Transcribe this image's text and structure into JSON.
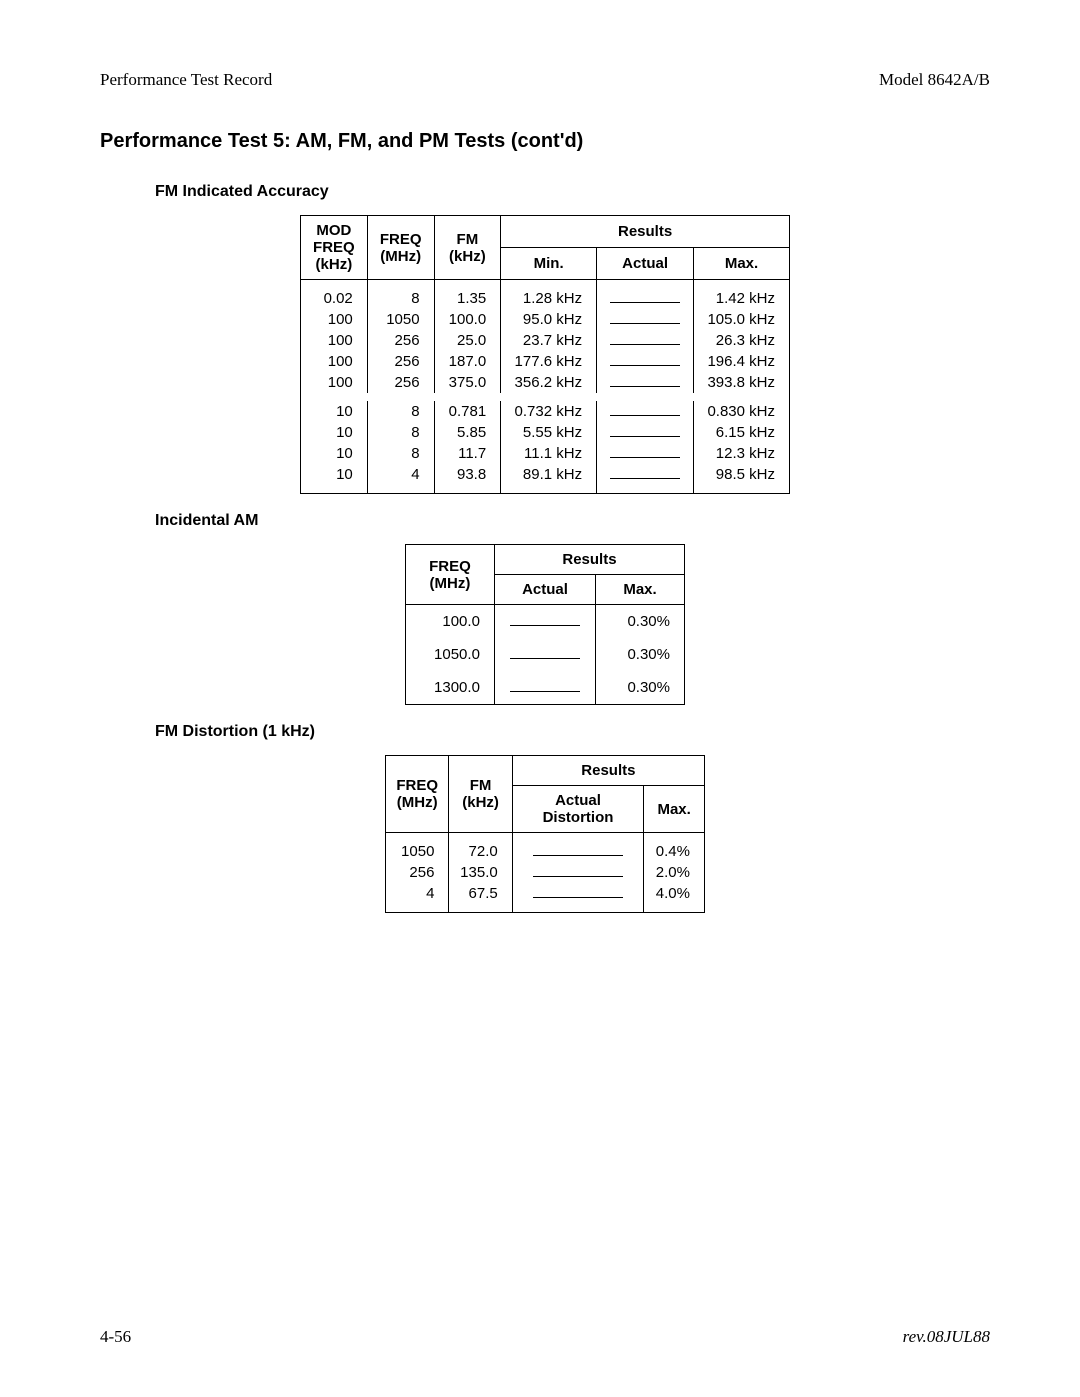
{
  "header": {
    "left": "Performance Test Record",
    "right": "Model 8642A/B"
  },
  "title": "Performance Test 5: AM, FM, and PM Tests (cont'd)",
  "section1": {
    "title": "FM Indicated Accuracy",
    "headers": {
      "mod": "MOD FREQ (kHz)",
      "freq": "FREQ (MHz)",
      "fm": "FM (kHz)",
      "results": "Results",
      "min": "Min.",
      "actual": "Actual",
      "max": "Max."
    },
    "rows": [
      {
        "mod": "0.02",
        "freq": "8",
        "fm": "1.35",
        "min": "1.28 kHz",
        "max": "1.42 kHz"
      },
      {
        "mod": "100",
        "freq": "1050",
        "fm": "100.0",
        "min": "95.0 kHz",
        "max": "105.0 kHz"
      },
      {
        "mod": "100",
        "freq": "256",
        "fm": "25.0",
        "min": "23.7 kHz",
        "max": "26.3 kHz"
      },
      {
        "mod": "100",
        "freq": "256",
        "fm": "187.0",
        "min": "177.6 kHz",
        "max": "196.4 kHz"
      },
      {
        "mod": "100",
        "freq": "256",
        "fm": "375.0",
        "min": "356.2 kHz",
        "max": "393.8 kHz"
      },
      {
        "mod": "10",
        "freq": "8",
        "fm": "0.781",
        "min": "0.732 kHz",
        "max": "0.830 kHz"
      },
      {
        "mod": "10",
        "freq": "8",
        "fm": "5.85",
        "min": "5.55 kHz",
        "max": "6.15 kHz"
      },
      {
        "mod": "10",
        "freq": "8",
        "fm": "11.7",
        "min": "11.1 kHz",
        "max": "12.3 kHz"
      },
      {
        "mod": "10",
        "freq": "4",
        "fm": "93.8",
        "min": "89.1 kHz",
        "max": "98.5 kHz"
      }
    ]
  },
  "section2": {
    "title": "Incidental AM",
    "headers": {
      "freq": "FREQ (MHz)",
      "results": "Results",
      "actual": "Actual",
      "max": "Max."
    },
    "rows": [
      {
        "freq": "100.0",
        "max": "0.30%"
      },
      {
        "freq": "1050.0",
        "max": "0.30%"
      },
      {
        "freq": "1300.0",
        "max": "0.30%"
      }
    ]
  },
  "section3": {
    "title": "FM Distortion (1 kHz)",
    "headers": {
      "freq": "FREQ (MHz)",
      "fm": "FM (kHz)",
      "results": "Results",
      "actual": "Actual Distortion",
      "max": "Max."
    },
    "rows": [
      {
        "freq": "1050",
        "fm": "72.0",
        "max": "0.4%"
      },
      {
        "freq": "256",
        "fm": "135.0",
        "max": "2.0%"
      },
      {
        "freq": "4",
        "fm": "67.5",
        "max": "4.0%"
      }
    ]
  },
  "footer": {
    "left": "4-56",
    "right": "rev.08JUL88"
  }
}
